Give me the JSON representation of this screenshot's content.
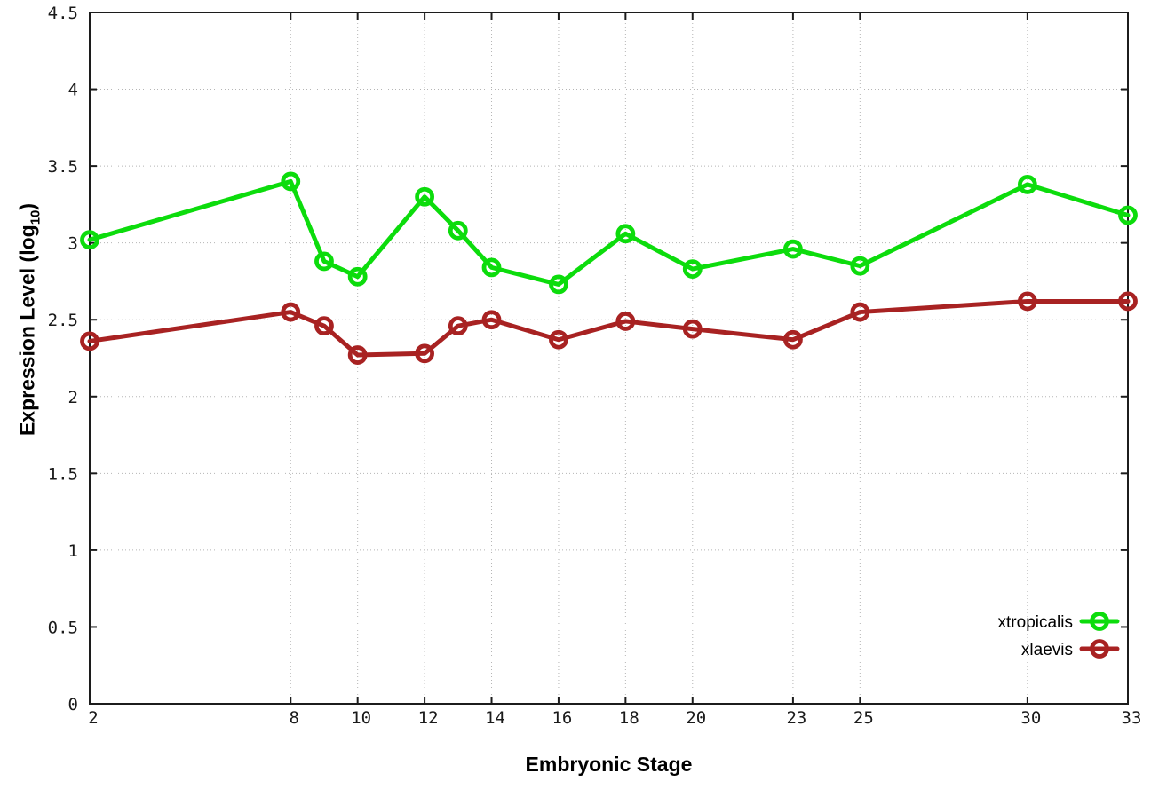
{
  "chart_data": {
    "type": "line",
    "title": "",
    "xlabel": "Embryonic Stage",
    "ylabel": "Expression Level (log10)",
    "ylabel_prefix": "Expression Level (log",
    "ylabel_subscript": "10",
    "ylabel_suffix": ")",
    "x": [
      2,
      8,
      9,
      10,
      12,
      13,
      14,
      16,
      18,
      20,
      23,
      25,
      30,
      33
    ],
    "x_tick_values": [
      2,
      8,
      10,
      12,
      14,
      16,
      18,
      20,
      23,
      25,
      30,
      33
    ],
    "x_tick_labels": [
      "2",
      "8",
      "10",
      "12",
      "14",
      "16",
      "18",
      "20",
      "23",
      "25",
      "30",
      "33"
    ],
    "y_tick_values": [
      0,
      0.5,
      1,
      1.5,
      2,
      2.5,
      3,
      3.5,
      4,
      4.5
    ],
    "y_tick_labels": [
      "0",
      "0.5",
      "1",
      "1.5",
      "2",
      "2.5",
      "3",
      "3.5",
      "4",
      "4.5"
    ],
    "xlim": [
      2,
      33
    ],
    "ylim": [
      0,
      4.5
    ],
    "grid": true,
    "legend": {
      "position": "inside-bottom-right",
      "entries": [
        "xtropicalis",
        "xlaevis"
      ]
    },
    "series": [
      {
        "name": "xtropicalis",
        "color": "#0CDC0C",
        "marker": "open-circle",
        "values": [
          3.02,
          3.4,
          2.88,
          2.78,
          3.3,
          3.08,
          2.84,
          2.73,
          3.06,
          2.83,
          2.96,
          2.85,
          3.38,
          3.18
        ]
      },
      {
        "name": "xlaevis",
        "color": "#A82222",
        "marker": "open-circle",
        "values": [
          2.36,
          2.55,
          2.46,
          2.27,
          2.28,
          2.46,
          2.5,
          2.37,
          2.49,
          2.44,
          2.37,
          2.55,
          2.62,
          2.62
        ]
      }
    ],
    "colors": {
      "grid": "#b5b5b5",
      "axis": "#1c1c1c",
      "tick_text": "#1a1a1a",
      "background": "#ffffff"
    }
  }
}
